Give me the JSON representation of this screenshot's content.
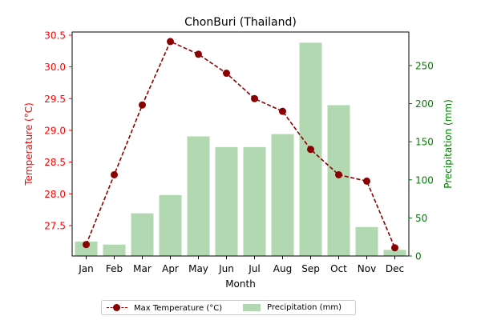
{
  "chart_data": {
    "type": "bar+line",
    "title": "ChonBuri (Thailand)",
    "xlabel": "Month",
    "categories": [
      "Jan",
      "Feb",
      "Mar",
      "Apr",
      "May",
      "Jun",
      "Jul",
      "Aug",
      "Sep",
      "Oct",
      "Nov",
      "Dec"
    ],
    "temperature": {
      "name": "Max Temperature (°C)",
      "axis_label": "Temperature (°C)",
      "axis": "left",
      "color": "#8b0000",
      "axis_color": "#ff0000",
      "style": "dashed line with circle markers",
      "values": [
        27.2,
        28.3,
        29.4,
        30.4,
        30.2,
        29.9,
        29.5,
        29.3,
        28.7,
        28.3,
        28.2,
        27.15
      ],
      "ylim": [
        27.02,
        30.55
      ],
      "ticks": [
        27.5,
        28.0,
        28.5,
        29.0,
        29.5,
        30.0,
        30.5
      ],
      "tick_labels": [
        "27.5",
        "28.0",
        "28.5",
        "29.0",
        "29.5",
        "30.0",
        "30.5"
      ]
    },
    "precipitation": {
      "name": "Precipitation (mm)",
      "axis_label": "Precipitation (mm)",
      "axis": "right",
      "color": "#b1d8b1",
      "axis_color": "#008000",
      "values": [
        19,
        15,
        56,
        80,
        157,
        143,
        143,
        160,
        280,
        198,
        38,
        8
      ],
      "ylim": [
        0,
        294
      ],
      "ticks": [
        0,
        50,
        100,
        150,
        200,
        250
      ],
      "tick_labels": [
        "0",
        "50",
        "100",
        "150",
        "200",
        "250"
      ]
    },
    "grid": false,
    "legend_position": "bottom-center"
  }
}
